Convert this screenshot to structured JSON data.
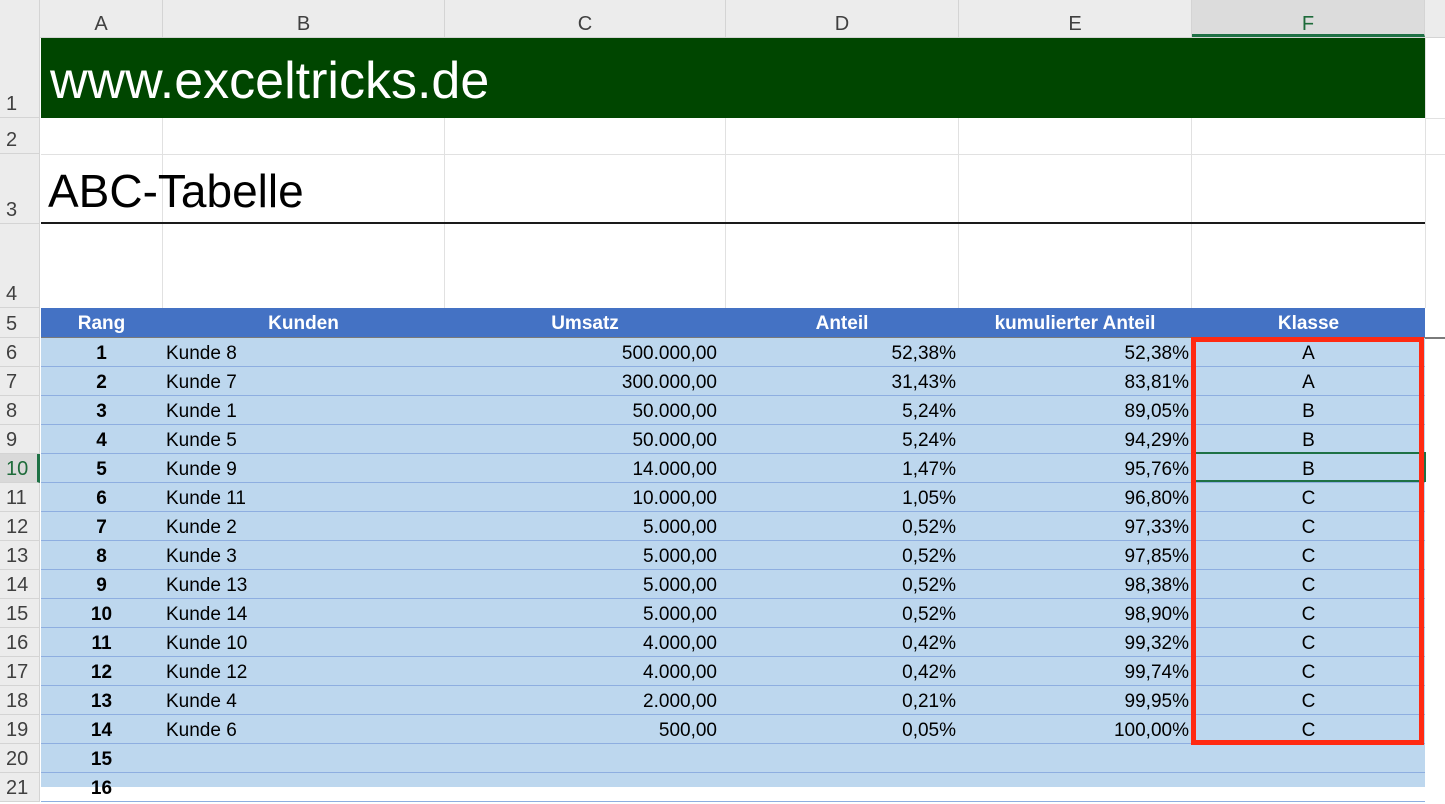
{
  "columns": [
    "A",
    "B",
    "C",
    "D",
    "E",
    "F"
  ],
  "selected_column": "F",
  "rows": [
    "1",
    "2",
    "3",
    "4",
    "5",
    "6",
    "7",
    "8",
    "9",
    "10",
    "11",
    "12",
    "13",
    "14",
    "15",
    "16",
    "17",
    "18",
    "19",
    "20",
    "21"
  ],
  "selected_row": "10",
  "banner": "www.exceltricks.de",
  "title": "ABC-Tabelle",
  "table": {
    "headers": [
      "Rang",
      "Kunden",
      "Umsatz",
      "Anteil",
      "kumulierter Anteil",
      "Klasse"
    ],
    "rows": [
      [
        "1",
        "Kunde 8",
        "500.000,00",
        "52,38%",
        "52,38%",
        "A"
      ],
      [
        "2",
        "Kunde 7",
        "300.000,00",
        "31,43%",
        "83,81%",
        "A"
      ],
      [
        "3",
        "Kunde 1",
        "50.000,00",
        "5,24%",
        "89,05%",
        "B"
      ],
      [
        "4",
        "Kunde 5",
        "50.000,00",
        "5,24%",
        "94,29%",
        "B"
      ],
      [
        "5",
        "Kunde 9",
        "14.000,00",
        "1,47%",
        "95,76%",
        "B"
      ],
      [
        "6",
        "Kunde 11",
        "10.000,00",
        "1,05%",
        "96,80%",
        "C"
      ],
      [
        "7",
        "Kunde 2",
        "5.000,00",
        "0,52%",
        "97,33%",
        "C"
      ],
      [
        "8",
        "Kunde 3",
        "5.000,00",
        "0,52%",
        "97,85%",
        "C"
      ],
      [
        "9",
        "Kunde 13",
        "5.000,00",
        "0,52%",
        "98,38%",
        "C"
      ],
      [
        "10",
        "Kunde 14",
        "5.000,00",
        "0,52%",
        "98,90%",
        "C"
      ],
      [
        "11",
        "Kunde 10",
        "4.000,00",
        "0,42%",
        "99,32%",
        "C"
      ],
      [
        "12",
        "Kunde 12",
        "4.000,00",
        "0,42%",
        "99,74%",
        "C"
      ],
      [
        "13",
        "Kunde 4",
        "2.000,00",
        "0,21%",
        "99,95%",
        "C"
      ],
      [
        "14",
        "Kunde 6",
        "500,00",
        "0,05%",
        "100,00%",
        "C"
      ],
      [
        "15",
        "",
        "",
        "",
        "",
        ""
      ],
      [
        "16",
        "",
        "",
        "",
        "",
        ""
      ]
    ]
  },
  "colors": {
    "banner_bg": "#004600",
    "header_bg": "#4472c4",
    "row_bg": "#bdd7ee",
    "highlight": "#ff2a12",
    "selection": "#1e7145"
  }
}
